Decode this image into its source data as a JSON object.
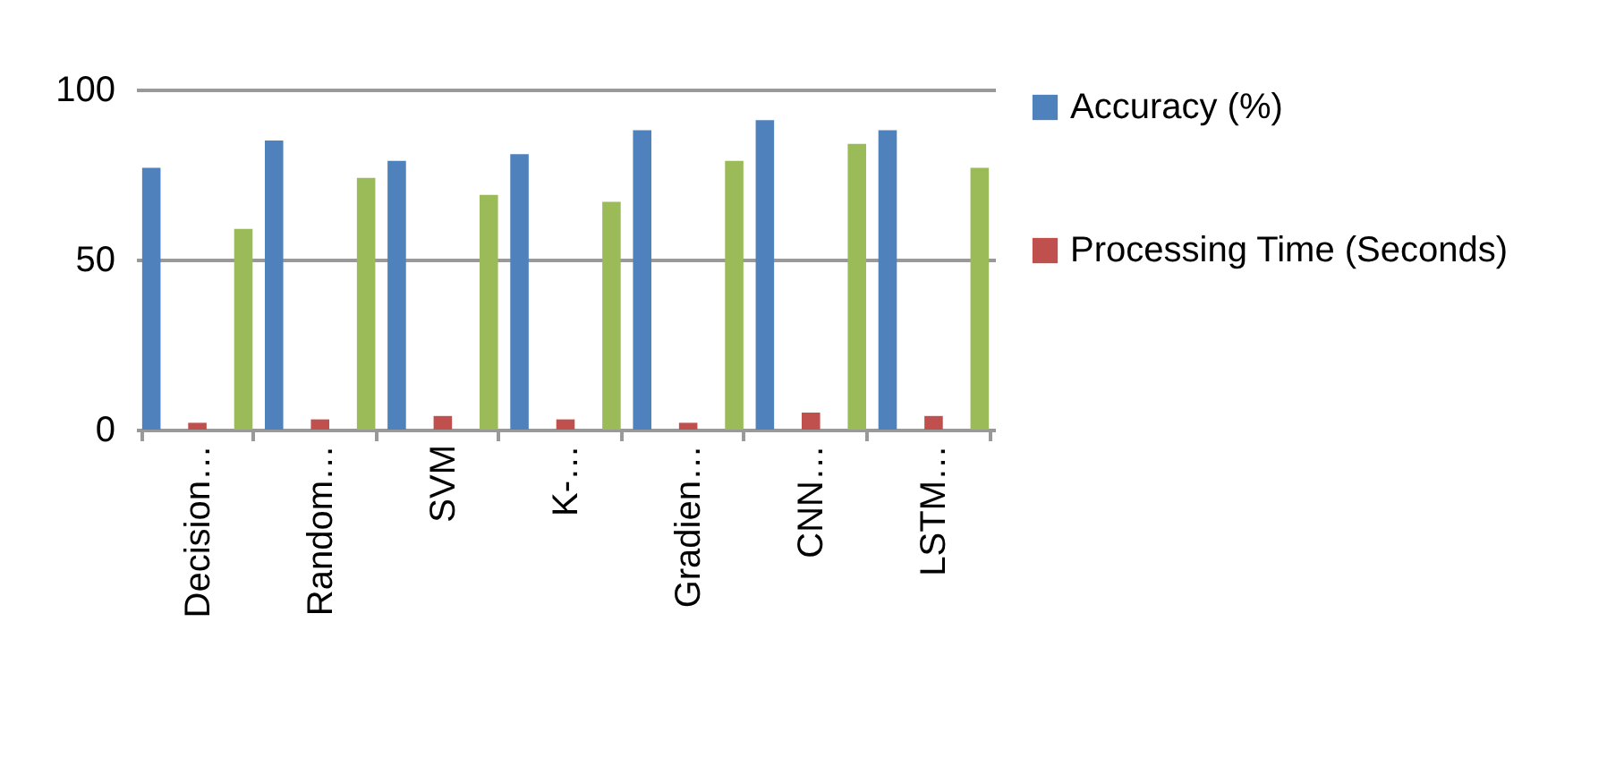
{
  "chart_data": {
    "type": "bar",
    "categories": [
      "Decision…",
      "Random…",
      "SVM",
      "K-…",
      "Gradien…",
      "CNN…",
      "LSTM…"
    ],
    "series": [
      {
        "name": "Accuracy (%)",
        "color": "#4f81bd",
        "values": [
          77,
          85,
          79,
          81,
          88,
          91,
          88
        ]
      },
      {
        "name": "Processing Time (Seconds)",
        "color": "#c0504d",
        "values": [
          2,
          3,
          4,
          3,
          2,
          5,
          4
        ]
      },
      {
        "color": "#9bbb59",
        "values": [
          59,
          74,
          69,
          67,
          79,
          84,
          77
        ]
      }
    ],
    "ylim": [
      0,
      100
    ],
    "yticks": [
      0,
      50,
      100
    ],
    "grid": "y",
    "legend": "right"
  }
}
